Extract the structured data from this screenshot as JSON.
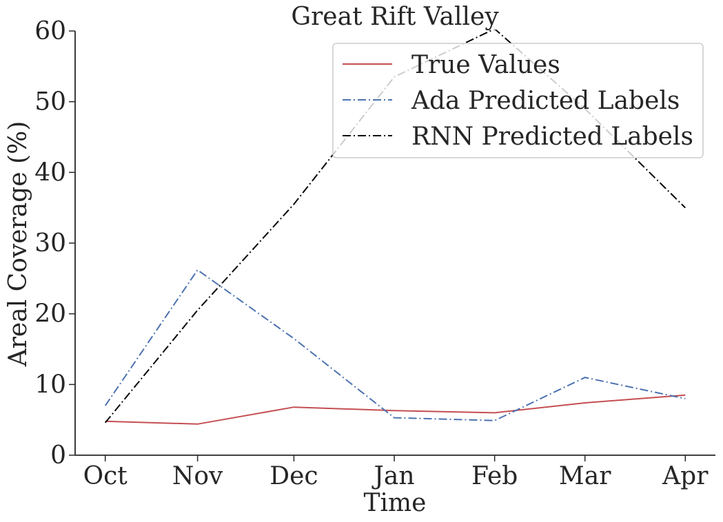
{
  "chart_data": {
    "type": "line",
    "title": "Great Rift Valley",
    "xlabel": "Time",
    "ylabel": "Areal Coverage (%)",
    "categories": [
      "Oct",
      "Nov",
      "Dec",
      "Jan",
      "Feb",
      "Mar",
      "Apr"
    ],
    "x_positions": [
      0,
      0.92,
      1.88,
      2.88,
      3.88,
      4.78,
      5.78
    ],
    "xlim": [
      -0.3,
      6.08
    ],
    "ylim": [
      0,
      60
    ],
    "yticks": [
      0,
      10,
      20,
      30,
      40,
      50,
      60
    ],
    "series": [
      {
        "name": "True Values",
        "values": [
          4.8,
          4.4,
          6.8,
          6.3,
          6.0,
          7.4,
          8.5
        ],
        "color": "#c44e52",
        "dash": "solid"
      },
      {
        "name": "Ada Predicted Labels",
        "values": [
          7.0,
          26.2,
          16.5,
          5.3,
          4.9,
          11.0,
          8.0
        ],
        "color": "#4c72b0",
        "dash": "dashdot"
      },
      {
        "name": "RNN Predicted Labels",
        "values": [
          4.6,
          20.5,
          35.5,
          53.5,
          60.3,
          49.0,
          35.0
        ],
        "color": "#000000",
        "dash": "dashdot"
      }
    ],
    "legend_position": "top-right",
    "grid": false
  }
}
